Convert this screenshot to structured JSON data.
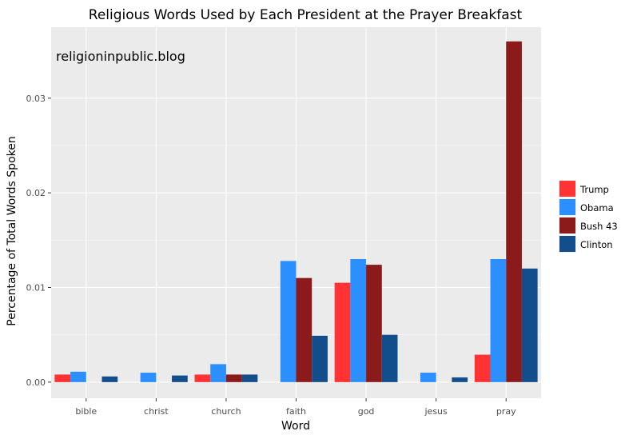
{
  "chart_data": {
    "type": "bar",
    "title": "Religious Words Used by Each President at the Prayer Breakfast",
    "xlabel": "Word",
    "ylabel": "Percentage of Total Words Spoken",
    "watermark": "religioninpublic.blog",
    "categories": [
      "bible",
      "christ",
      "church",
      "faith",
      "god",
      "jesus",
      "pray"
    ],
    "ylim": [
      -0.0017,
      0.0375
    ],
    "yticks": [
      0.0,
      0.01,
      0.02,
      0.03
    ],
    "ytick_labels": [
      "0.00",
      "0.01",
      "0.02",
      "0.03"
    ],
    "grid": true,
    "legend_position": "right",
    "series": [
      {
        "name": "Trump",
        "color": "#ff3333",
        "values": [
          0.0008,
          0.0,
          0.0008,
          0.0,
          0.0105,
          0.0,
          0.0029
        ]
      },
      {
        "name": "Obama",
        "color": "#2b8fff",
        "values": [
          0.0011,
          0.001,
          0.0019,
          0.0128,
          0.013,
          0.001,
          0.013
        ]
      },
      {
        "name": "Bush 43",
        "color": "#8b1a1a",
        "values": [
          0.0,
          0.0,
          0.0008,
          0.011,
          0.0124,
          0.0,
          0.036
        ]
      },
      {
        "name": "Clinton",
        "color": "#124e8c",
        "values": [
          0.0006,
          0.0007,
          0.0008,
          0.0049,
          0.005,
          0.0005,
          0.012
        ]
      }
    ]
  }
}
